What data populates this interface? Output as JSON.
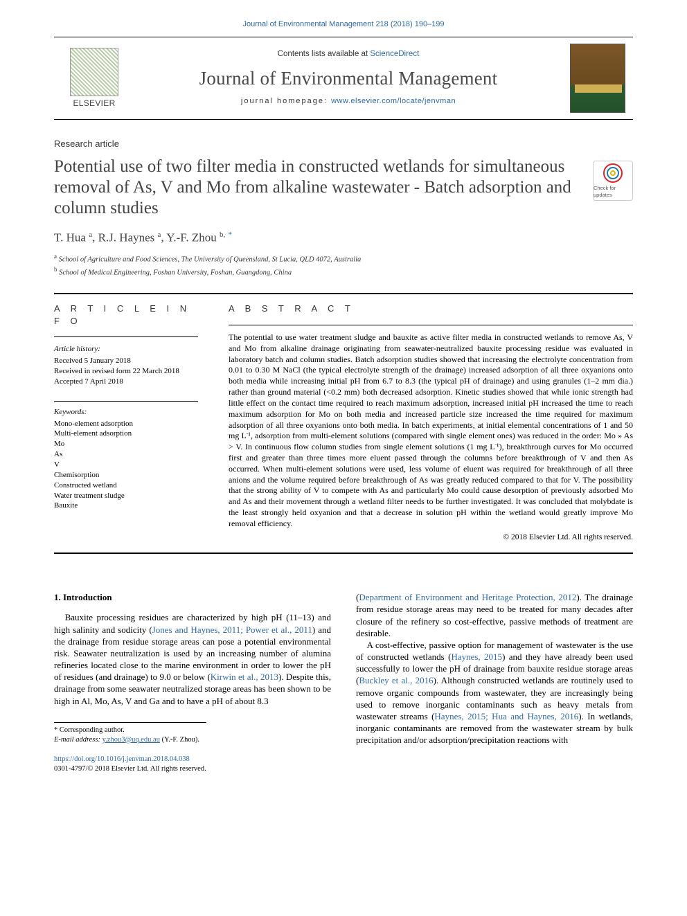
{
  "topCitation": "Journal of Environmental Management 218 (2018) 190–199",
  "banner": {
    "contents_prefix": "Contents lists available at ",
    "contents_link": "ScienceDirect",
    "journal": "Journal of Environmental Management",
    "homepage_prefix": "journal homepage: ",
    "homepage_url": "www.elsevier.com/locate/jenvman",
    "publisher": "ELSEVIER",
    "cover_title": "Environmental Management"
  },
  "articleType": "Research article",
  "title": "Potential use of two filter media in constructed wetlands for simultaneous removal of As, V and Mo from alkaline wastewater - Batch adsorption and column studies",
  "crossmark_label": "Check for updates",
  "authors_html": "T. Hua <span class='affsup'>a</span>, R.J. Haynes <span class='affsup'>a</span>, Y.-F. Zhou <span class='affsup'>b,</span> <span class='affsup corr'>*</span>",
  "affiliations": {
    "a": "School of Agriculture and Food Sciences, The University of Queensland, St Lucia, QLD 4072, Australia",
    "b": "School of Medical Engineering, Foshan University, Foshan, Guangdong, China"
  },
  "sections": {
    "info_heading": "A R T I C L E   I N F O",
    "abs_heading": "A B S T R A C T"
  },
  "history": {
    "label": "Article history:",
    "received": "Received 5 January 2018",
    "revised": "Received in revised form 22 March 2018",
    "accepted": "Accepted 7 April 2018"
  },
  "keywords": {
    "label": "Keywords:",
    "items": [
      "Mono-element adsorption",
      "Multi-element adsorption",
      "Mo",
      "As",
      "V",
      "Chemisorption",
      "Constructed wetland",
      "Water treatment sludge",
      "Bauxite"
    ]
  },
  "abstract": "The potential to use water treatment sludge and bauxite as active filter media in constructed wetlands to remove As, V and Mo from alkaline drainage originating from seawater-neutralized bauxite processing residue was evaluated in laboratory batch and column studies. Batch adsorption studies showed that increasing the electrolyte concentration from 0.01 to 0.30 M NaCl (the typical electrolyte strength of the drainage) increased adsorption of all three oxyanions onto both media while increasing initial pH from 6.7 to 8.3 (the typical pH of drainage) and using granules (1–2 mm dia.) rather than ground material (<0.2 mm) both decreased adsorption. Kinetic studies showed that while ionic strength had little effect on the contact time required to reach maximum adsorption, increased initial pH increased the time to reach maximum adsorption for Mo on both media and increased particle size increased the time required for maximum adsorption of all three oxyanions onto both media. In batch experiments, at initial elemental concentrations of 1 and 50 mg L⁻¹, adsorption from multi-element solutions (compared with single element ones) was reduced in the order: Mo » As > V. In continuous flow column studies from single element solutions (1 mg L⁻¹), breakthrough curves for Mo occurred first and greater than three times more eluent passed through the columns before breakthrough of V and then As occurred. When multi-element solutions were used, less volume of eluent was required for breakthrough of all three anions and the volume required before breakthrough of As was greatly reduced compared to that for V. The possibility that the strong ability of V to compete with As and particularly Mo could cause desorption of previously adsorbed Mo and As and their movement through a wetland filter needs to be further investigated. It was concluded that molybdate is the least strongly held oxyanion and that a decrease in solution pH within the wetland would greatly improve Mo removal efficiency.",
  "copyright": "© 2018 Elsevier Ltd. All rights reserved.",
  "intro": {
    "heading": "1. Introduction",
    "para1_pre": "Bauxite processing residues are characterized by high pH (11–13) and high salinity and sodicity (",
    "cite1": "Jones and Haynes, 2011; Power et al., 2011",
    "para1_mid1": ") and the drainage from residue storage areas can pose a potential environmental risk. Seawater neutralization is used by an increasing number of alumina refineries located close to the marine environment in order to lower the pH of residues (and drainage) to 9.0 or below (",
    "cite2": "Kirwin et al., 2013",
    "para1_post": "). Despite this, drainage from some seawater neutralized storage areas has been shown to be high in Al, Mo, As, V and Ga and to have a pH of about 8.3",
    "col2_pre": "(",
    "cite3": "Department of Environment and Heritage Protection, 2012",
    "col2_after3": "). The drainage from residue storage areas may need to be treated for many decades after closure of the refinery so cost-effective, passive methods of treatment are desirable.",
    "para2_pre": "A cost-effective, passive option for management of wastewater is the use of constructed wetlands (",
    "cite4": "Haynes, 2015",
    "para2_mid1": ") and they have already been used successfully to lower the pH of drainage from bauxite residue storage areas (",
    "cite5": "Buckley et al., 2016",
    "para2_mid2": "). Although constructed wetlands are routinely used to remove organic compounds from wastewater, they are increasingly being used to remove inorganic contaminants such as heavy metals from wastewater streams (",
    "cite6": "Haynes, 2015; Hua and Haynes, 2016",
    "para2_post": "). In wetlands, inorganic contaminants are removed from the wastewater stream by bulk precipitation and/or adsorption/precipitation reactions with"
  },
  "footnote": {
    "corr_label": "* Corresponding author.",
    "email_label": "E-mail address:",
    "email": "y.zhou3@uq.edu.au",
    "email_person": "(Y.-F. Zhou)."
  },
  "doi": {
    "url": "https://doi.org/10.1016/j.jenvman.2018.04.038",
    "issn_line": "0301-4797/© 2018 Elsevier Ltd. All rights reserved."
  },
  "colors": {
    "link": "#2d6aa3",
    "text": "#000000",
    "muted": "#444444"
  }
}
